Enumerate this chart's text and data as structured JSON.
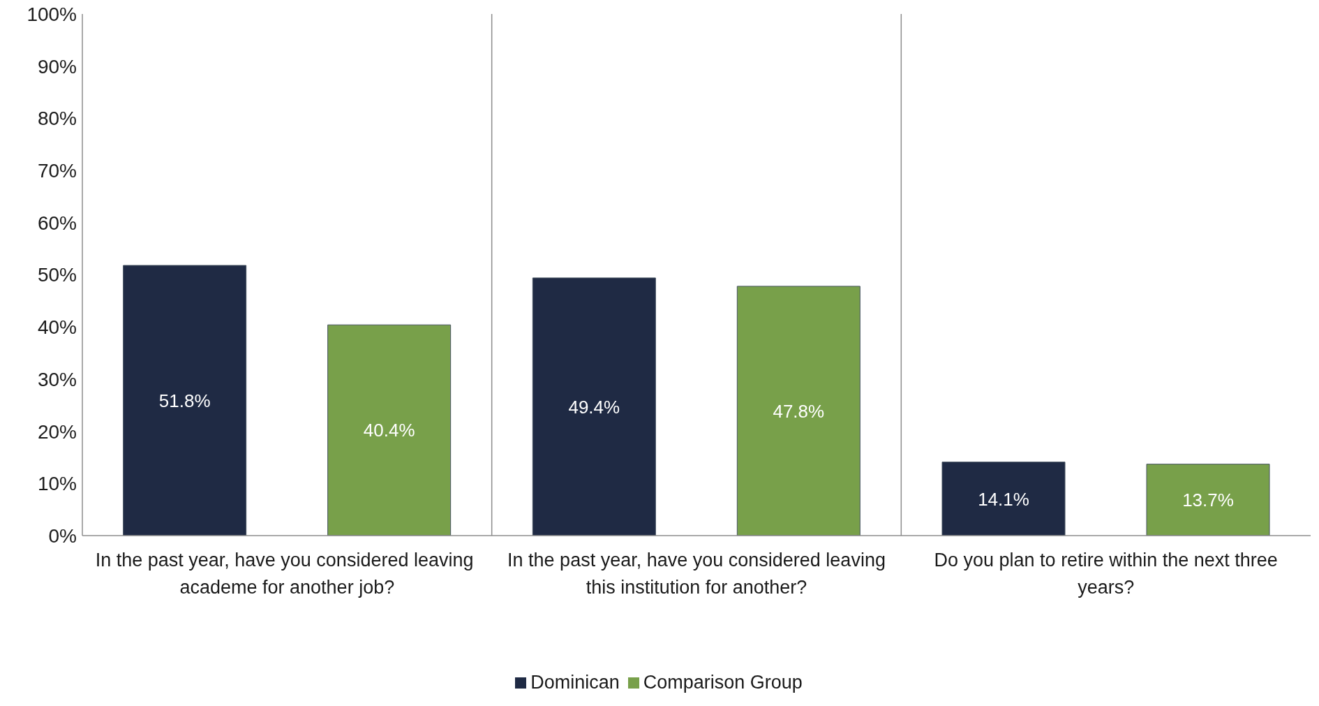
{
  "chart_data": {
    "type": "bar",
    "categories": [
      "In the past year, have you considered leaving  academe for another job?",
      "In the past year, have you considered leaving this institution for another?",
      "Do you plan to retire within the next three years?"
    ],
    "series": [
      {
        "name": "Dominican",
        "color": "#1f2a44",
        "values": [
          51.8,
          49.4,
          14.1
        ],
        "value_labels": [
          "51.8%",
          "49.4%",
          "14.1%"
        ]
      },
      {
        "name": "Comparison Group",
        "color": "#78a04a",
        "values": [
          40.4,
          47.8,
          13.7
        ],
        "value_labels": [
          "40.4%",
          "47.8%",
          "13.7%"
        ]
      }
    ],
    "ylim": [
      0,
      100
    ],
    "yticks": [
      {
        "value": 0,
        "label": "0%"
      },
      {
        "value": 10,
        "label": "10%"
      },
      {
        "value": 20,
        "label": "20%"
      },
      {
        "value": 30,
        "label": "30%"
      },
      {
        "value": 40,
        "label": "40%"
      },
      {
        "value": 50,
        "label": "50%"
      },
      {
        "value": 60,
        "label": "60%"
      },
      {
        "value": 70,
        "label": "70%"
      },
      {
        "value": 80,
        "label": "80%"
      },
      {
        "value": 90,
        "label": "90%"
      },
      {
        "value": 100,
        "label": "100%"
      }
    ],
    "grid": "x",
    "legend": "bottom"
  }
}
